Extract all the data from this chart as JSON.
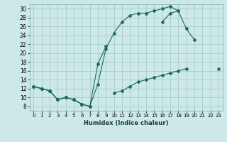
{
  "xlabel": "Humidex (Indice chaleur)",
  "bg_color": "#cce8e8",
  "grid_color": "#aacccc",
  "line_color": "#1a6b5a",
  "xlim": [
    -0.5,
    23.5
  ],
  "ylim": [
    7,
    31
  ],
  "xticks": [
    0,
    1,
    2,
    3,
    4,
    5,
    6,
    7,
    8,
    9,
    10,
    11,
    12,
    13,
    14,
    15,
    16,
    17,
    18,
    19,
    20,
    21,
    22,
    23
  ],
  "yticks": [
    8,
    10,
    12,
    14,
    16,
    18,
    20,
    22,
    24,
    26,
    28,
    30
  ],
  "line1_y": [
    12.5,
    12.0,
    11.5,
    9.5,
    10.0,
    9.5,
    8.5,
    8.0,
    13.0,
    21.0,
    24.5,
    27.0,
    28.5,
    29.0,
    29.0,
    29.5,
    30.0,
    30.5,
    29.5,
    null,
    null,
    null,
    null,
    null
  ],
  "line2_y": [
    12.5,
    12.0,
    11.5,
    9.5,
    10.0,
    9.5,
    8.5,
    8.0,
    17.5,
    21.5,
    null,
    null,
    null,
    null,
    null,
    null,
    27.0,
    29.0,
    29.5,
    25.5,
    23.0,
    null,
    null,
    null
  ],
  "line3_y": [
    12.5,
    12.0,
    11.5,
    9.5,
    10.0,
    9.5,
    8.5,
    null,
    null,
    null,
    11.0,
    11.5,
    12.5,
    13.5,
    14.0,
    14.5,
    15.0,
    15.5,
    16.0,
    16.5,
    null,
    null,
    null,
    16.5
  ]
}
